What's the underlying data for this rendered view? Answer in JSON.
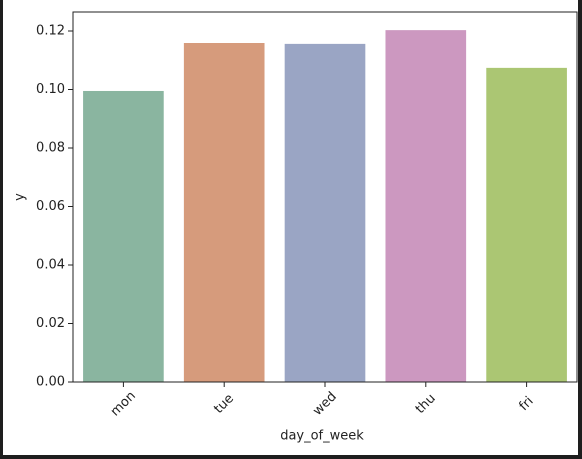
{
  "chart_data": {
    "type": "bar",
    "categories": [
      "mon",
      "tue",
      "wed",
      "thu",
      "fri"
    ],
    "values": [
      0.0995,
      0.1159,
      0.1156,
      0.1203,
      0.1074
    ],
    "colors": [
      "#8ab5a0",
      "#d69b7c",
      "#9aa5c4",
      "#cc98c0",
      "#abc673"
    ],
    "xlabel": "day_of_week",
    "ylabel": "y",
    "ylim": [
      0,
      0.1265
    ],
    "yticks": [
      {
        "value": 0,
        "label": "0.00"
      },
      {
        "value": 0.02,
        "label": "0.02"
      },
      {
        "value": 0.04,
        "label": "0.04"
      },
      {
        "value": 0.06,
        "label": "0.06"
      },
      {
        "value": 0.08,
        "label": "0.08"
      },
      {
        "value": 0.1,
        "label": "0.10"
      },
      {
        "value": 0.12,
        "label": "0.12"
      }
    ]
  }
}
